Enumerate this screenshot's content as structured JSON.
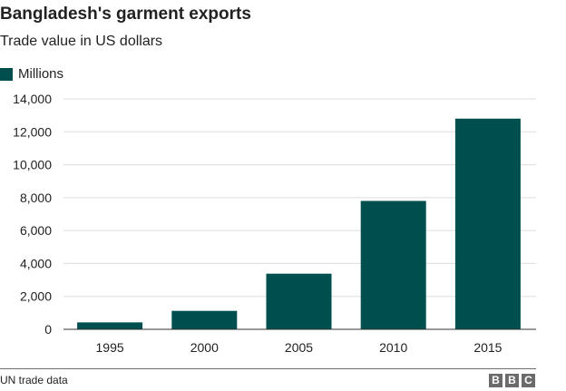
{
  "title": "Bangladesh's garment exports",
  "subtitle": "Trade value in US dollars",
  "source": "UN trade data",
  "logo": "BBC",
  "colors": {
    "bar": "#004f4f",
    "grid": "#dddddd",
    "axis": "#333333"
  },
  "chart_data": {
    "type": "bar",
    "title": "Bangladesh's garment exports",
    "subtitle": "Trade value in US dollars",
    "categories": [
      "1995",
      "2000",
      "2005",
      "2010",
      "2015"
    ],
    "series": [
      {
        "name": "Millions",
        "values": [
          420,
          1120,
          3380,
          7800,
          12800
        ]
      }
    ],
    "yticks": [
      "0",
      "2,000",
      "4,000",
      "6,000",
      "8,000",
      "10,000",
      "12,000",
      "14,000"
    ],
    "ylim": [
      0,
      14000
    ],
    "xlabel": "",
    "ylabel": "",
    "grid": true,
    "legend": "top-left"
  }
}
